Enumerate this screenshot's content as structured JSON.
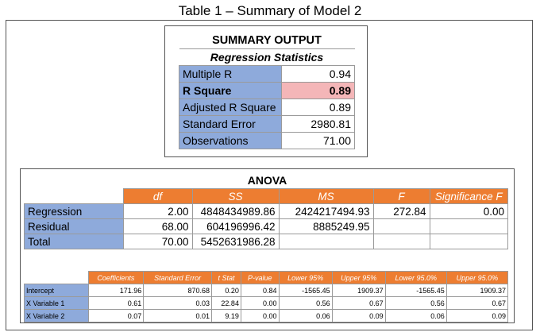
{
  "caption": "Table 1 – Summary of Model 2",
  "summary": {
    "title": "SUMMARY OUTPUT",
    "subtitle": "Regression Statistics",
    "rows": [
      {
        "label": "Multiple R",
        "value": "0.94"
      },
      {
        "label": "R Square",
        "value": "0.89"
      },
      {
        "label": "Adjusted R Square",
        "value": "0.89"
      },
      {
        "label": "Standard Error",
        "value": "2980.81"
      },
      {
        "label": "Observations",
        "value": "71.00"
      }
    ],
    "highlight_color": "#f4b6b8",
    "label_color": "#8eaadb"
  },
  "anova": {
    "title": "ANOVA",
    "headers": [
      "df",
      "SS",
      "MS",
      "F",
      "Significance F"
    ],
    "rows": [
      {
        "label": "Regression",
        "df": "2.00",
        "ss": "4848434989.86",
        "ms": "2424217494.93",
        "f": "272.84",
        "sig": "0.00"
      },
      {
        "label": "Residual",
        "df": "68.00",
        "ss": "604196996.42",
        "ms": "8885249.95",
        "f": "",
        "sig": ""
      },
      {
        "label": "Total",
        "df": "70.00",
        "ss": "5452631986.28",
        "ms": "",
        "f": "",
        "sig": ""
      }
    ],
    "header_color": "#ed7d31"
  },
  "coefficients": {
    "headers": [
      "Coefficients",
      "Standard Error",
      "t Stat",
      "P-value",
      "Lower 95%",
      "Upper 95%",
      "Lower 95.0%",
      "Upper 95.0%"
    ],
    "rows": [
      {
        "label": "Intercept",
        "values": [
          "171.96",
          "870.68",
          "0.20",
          "0.84",
          "-1565.45",
          "1909.37",
          "-1565.45",
          "1909.37"
        ]
      },
      {
        "label": "X Variable 1",
        "values": [
          "0.61",
          "0.03",
          "22.84",
          "0.00",
          "0.56",
          "0.67",
          "0.56",
          "0.67"
        ]
      },
      {
        "label": "X Variable 2",
        "values": [
          "0.07",
          "0.01",
          "9.19",
          "0.00",
          "0.06",
          "0.09",
          "0.06",
          "0.09"
        ]
      }
    ]
  }
}
